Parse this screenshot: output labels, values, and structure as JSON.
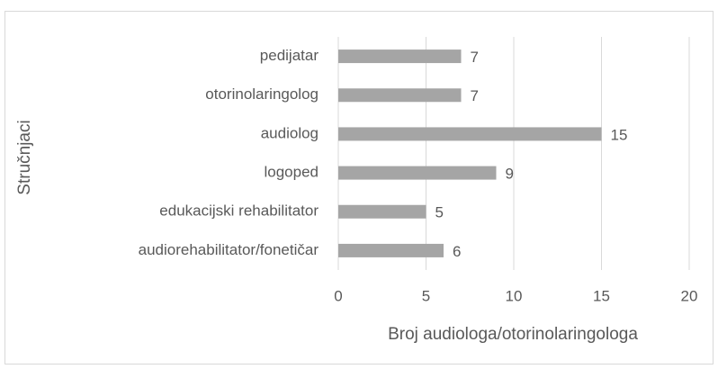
{
  "chart_data": {
    "type": "bar",
    "orientation": "horizontal",
    "xlabel": "Broj audiologa/otorinolaringologa",
    "ylabel": "Stručnjaci",
    "categories": [
      "pedijatar",
      "otorinolaringolog",
      "audiolog",
      "logoped",
      "edukacijski rehabilitator",
      "audiorehabilitator/fonetičar"
    ],
    "values": [
      7,
      7,
      15,
      9,
      5,
      6
    ],
    "color": "#a5a5a5",
    "xlim": [
      0,
      20
    ],
    "xticks": [
      0,
      5,
      10,
      15,
      20
    ],
    "grid": true
  }
}
